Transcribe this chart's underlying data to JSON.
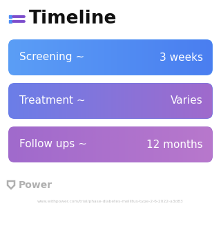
{
  "title": "Timeline",
  "title_icon_color": "#7c4dcc",
  "title_icon_blue": "#4d8ef5",
  "background_color": "#ffffff",
  "rows": [
    {
      "label": "Screening ~",
      "value": "3 weeks",
      "c_left": "#5b9ef6",
      "c_right": "#4a7ef0"
    },
    {
      "label": "Treatment ~",
      "value": "Varies",
      "c_left": "#6b7ee8",
      "c_right": "#a06acc"
    },
    {
      "label": "Follow ups ~",
      "value": "12 months",
      "c_left": "#a06acc",
      "c_right": "#b878cc"
    }
  ],
  "footer_logo_text": "Power",
  "footer_url": "www.withpower.com/trial/phase-diabetes-mellitus-type-2-6-2022-a3d83",
  "footer_color": "#b0b0b0"
}
